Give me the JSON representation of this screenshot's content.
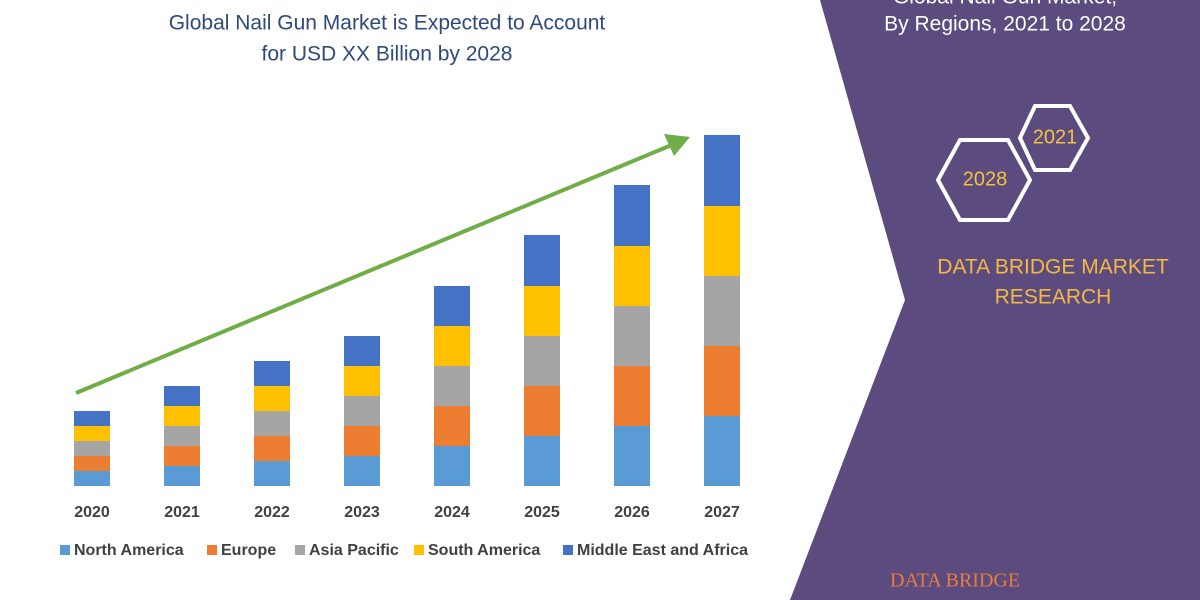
{
  "chart_data": {
    "type": "stacked_bar",
    "title": [
      "Global Nail Gun Market is Expected to Account",
      "for USD XX Billion by 2028"
    ],
    "categories": [
      "2020",
      "2021",
      "2022",
      "2023",
      "2024",
      "2025",
      "2026",
      "2027"
    ],
    "series": [
      {
        "name": "North America",
        "color": "#5b9bd5",
        "values": [
          15,
          20,
          25,
          30,
          40,
          50,
          60,
          70
        ]
      },
      {
        "name": "Europe",
        "color": "#ed7d31",
        "values": [
          15,
          20,
          25,
          30,
          40,
          50,
          60,
          70
        ]
      },
      {
        "name": "Asia Pacific",
        "color": "#a5a5a5",
        "values": [
          15,
          20,
          25,
          30,
          40,
          50,
          60,
          70
        ]
      },
      {
        "name": "South America",
        "color": "#ffc000",
        "values": [
          15,
          20,
          25,
          30,
          40,
          50,
          60,
          70
        ]
      },
      {
        "name": "Middle East and Africa",
        "color": "#4472c4",
        "values": [
          15,
          20,
          25,
          30,
          40,
          51,
          61,
          71
        ]
      }
    ]
  },
  "panel": {
    "title": [
      "Global Nail Gun Market,",
      "By Regions, 2021 to 2028"
    ],
    "hexagons": [
      "2021",
      "2028"
    ],
    "brand": [
      "DATA BRIDGE MARKET",
      "RESEARCH"
    ],
    "logo": "DATA BRIDGE"
  }
}
